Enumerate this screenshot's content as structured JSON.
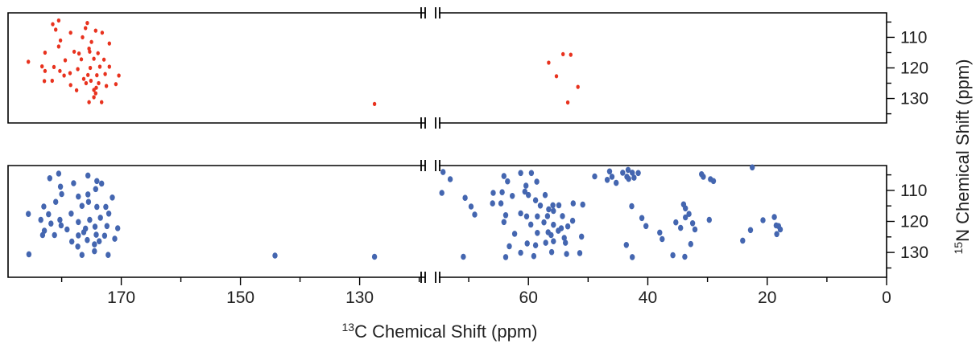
{
  "chart_data": {
    "type": "scatter",
    "xlabel": {
      "sup": "13",
      "text": "C Chemical Shift (ppm)"
    },
    "ylabel": {
      "sup": "15",
      "text": "N Chemical Shift (ppm)"
    },
    "x_axis_segments": [
      {
        "name": "carbonyl-aromatic",
        "range": [
          189,
          119
        ],
        "ticks": [
          170,
          150,
          130
        ],
        "minor_ticks": [
          180,
          160,
          140,
          120
        ]
      },
      {
        "name": "aliphatic",
        "range": [
          75,
          0
        ],
        "ticks": [
          60,
          40,
          20,
          0
        ],
        "minor_ticks": [
          70,
          50,
          30,
          10
        ]
      }
    ],
    "ylim": [
      138,
      102
    ],
    "y_ticks": [
      110,
      120,
      130
    ],
    "y_inverted": true,
    "axis_break_marker": "||",
    "series": [
      {
        "panel": "top",
        "color": "#e8321e",
        "points": [
          [
            180.5,
            104.5
          ],
          [
            175.7,
            105.3
          ],
          [
            181.5,
            105.7
          ],
          [
            181,
            107.5
          ],
          [
            176,
            107
          ],
          [
            174.3,
            107.8
          ],
          [
            178.5,
            108.5
          ],
          [
            173.2,
            108.5
          ],
          [
            176.5,
            110
          ],
          [
            180.2,
            111
          ],
          [
            175,
            111.5
          ],
          [
            172,
            112
          ],
          [
            180.5,
            113
          ],
          [
            175.4,
            113.7
          ],
          [
            177.9,
            114.7
          ],
          [
            182.8,
            115
          ],
          [
            175.3,
            114.7
          ],
          [
            173.9,
            115.2
          ],
          [
            177.1,
            115.3
          ],
          [
            174.6,
            117
          ],
          [
            179.4,
            117.5
          ],
          [
            176.7,
            117.2
          ],
          [
            172.9,
            117.3
          ],
          [
            185.6,
            118
          ],
          [
            183.3,
            119.5
          ],
          [
            181.3,
            119.7
          ],
          [
            173.6,
            119.6
          ],
          [
            172,
            119.6
          ],
          [
            175.2,
            120
          ],
          [
            177.3,
            120.4
          ],
          [
            180.3,
            121
          ],
          [
            182.8,
            121
          ],
          [
            178.6,
            121.7
          ],
          [
            174.1,
            122.4
          ],
          [
            172.7,
            122
          ],
          [
            179.6,
            122.5
          ],
          [
            175.6,
            122.3
          ],
          [
            170.4,
            122.5
          ],
          [
            176.3,
            123.6
          ],
          [
            175.1,
            124.2
          ],
          [
            181.6,
            124.2
          ],
          [
            182.9,
            124.3
          ],
          [
            175.9,
            125
          ],
          [
            173.8,
            125
          ],
          [
            172.5,
            125.9
          ],
          [
            178.5,
            125.6
          ],
          [
            170.9,
            125.3
          ],
          [
            174.2,
            126.5
          ],
          [
            174.6,
            127.2
          ],
          [
            177.5,
            127.3
          ],
          [
            174.3,
            128.3
          ],
          [
            174.6,
            129.6
          ],
          [
            175.4,
            131.2
          ],
          [
            173.3,
            131.2
          ],
          [
            127.5,
            131.8
          ],
          [
            56.6,
            118.3
          ],
          [
            54.2,
            115.5
          ],
          [
            52.9,
            115.7
          ],
          [
            55.3,
            122.7
          ],
          [
            51.7,
            126.2
          ],
          [
            53.4,
            131.3
          ]
        ]
      },
      {
        "panel": "bottom",
        "color": "#4466b0",
        "points": [
          [
            180.5,
            104.6
          ],
          [
            175.6,
            105.2
          ],
          [
            182,
            106.1
          ],
          [
            174.1,
            107
          ],
          [
            178,
            107.7
          ],
          [
            173.3,
            107.8
          ],
          [
            180.2,
            108.8
          ],
          [
            174.3,
            109.6
          ],
          [
            175.6,
            111.3
          ],
          [
            180,
            111.2
          ],
          [
            177.2,
            112
          ],
          [
            171.5,
            112.3
          ],
          [
            181,
            113.7
          ],
          [
            175.5,
            113.7
          ],
          [
            176.6,
            115
          ],
          [
            183,
            115.2
          ],
          [
            174.1,
            115.3
          ],
          [
            172.6,
            115.3
          ],
          [
            182.2,
            117.7
          ],
          [
            178.4,
            117.5
          ],
          [
            172.1,
            117.5
          ],
          [
            185.6,
            117.6
          ],
          [
            180.3,
            119.5
          ],
          [
            183.5,
            119.5
          ],
          [
            173.5,
            118.8
          ],
          [
            175.3,
            119.5
          ],
          [
            177.2,
            120.2
          ],
          [
            181.8,
            120.7
          ],
          [
            180.1,
            121.3
          ],
          [
            174.4,
            121.7
          ],
          [
            172.4,
            121.5
          ],
          [
            176,
            122.3
          ],
          [
            179.1,
            122.6
          ],
          [
            170.6,
            122.2
          ],
          [
            182.9,
            123
          ],
          [
            176.3,
            123.5
          ],
          [
            174.2,
            124.3
          ],
          [
            181.2,
            124.4
          ],
          [
            183.2,
            124.4
          ],
          [
            177.2,
            124.5
          ],
          [
            172.8,
            124.6
          ],
          [
            171.1,
            125.6
          ],
          [
            175.7,
            126
          ],
          [
            173.7,
            126.4
          ],
          [
            178.3,
            126.5
          ],
          [
            174.5,
            127.4
          ],
          [
            177.3,
            128.1
          ],
          [
            174.5,
            129.6
          ],
          [
            176.6,
            130.8
          ],
          [
            172.2,
            130.8
          ],
          [
            185.5,
            130.6
          ],
          [
            144.2,
            131
          ],
          [
            127.5,
            131.4
          ],
          [
            74.3,
            104.1
          ],
          [
            73.1,
            106.4
          ],
          [
            74.5,
            110.8
          ],
          [
            70.6,
            112.4
          ],
          [
            69.6,
            115.2
          ],
          [
            69,
            117.8
          ],
          [
            61.3,
            104.4
          ],
          [
            59.5,
            104.4
          ],
          [
            64.1,
            105.4
          ],
          [
            63.5,
            107.1
          ],
          [
            58.6,
            107.2
          ],
          [
            60.4,
            108.5
          ],
          [
            60.6,
            110.4
          ],
          [
            64.4,
            110.6
          ],
          [
            65.9,
            110.8
          ],
          [
            57.2,
            111.5
          ],
          [
            60,
            111.5
          ],
          [
            62.7,
            111.8
          ],
          [
            58.8,
            113.2
          ],
          [
            66,
            114.2
          ],
          [
            64.6,
            114.2
          ],
          [
            58,
            114.9
          ],
          [
            54.9,
            114.8
          ],
          [
            55.9,
            114.8
          ],
          [
            52.5,
            114.2
          ],
          [
            50.9,
            114.6
          ],
          [
            56.6,
            116.1
          ],
          [
            55.8,
            116.6
          ],
          [
            61.3,
            117.4
          ],
          [
            63.8,
            118
          ],
          [
            60.3,
            118.4
          ],
          [
            58.5,
            118.4
          ],
          [
            56.8,
            118.3
          ],
          [
            54.3,
            118.3
          ],
          [
            52.6,
            119.8
          ],
          [
            64.1,
            120.2
          ],
          [
            57.4,
            120.3
          ],
          [
            59.6,
            121
          ],
          [
            55.8,
            121.1
          ],
          [
            53.4,
            121.6
          ],
          [
            54.5,
            122.2
          ],
          [
            55,
            123
          ],
          [
            56.7,
            123.5
          ],
          [
            58.5,
            123.7
          ],
          [
            62.3,
            124
          ],
          [
            56.2,
            124.4
          ],
          [
            51.1,
            124.9
          ],
          [
            54,
            125.3
          ],
          [
            55.8,
            126.4
          ],
          [
            53.8,
            126.9
          ],
          [
            57.1,
            126.9
          ],
          [
            60.2,
            127.1
          ],
          [
            58.8,
            127.7
          ],
          [
            63.2,
            128
          ],
          [
            56.1,
            129.9
          ],
          [
            53.6,
            130.5
          ],
          [
            51.4,
            130.2
          ],
          [
            61.3,
            130.1
          ],
          [
            59.1,
            131.2
          ],
          [
            63.8,
            131.5
          ],
          [
            70.9,
            131.4
          ],
          [
            46.4,
            103.9
          ],
          [
            46,
            105.6
          ],
          [
            44.2,
            104.3
          ],
          [
            43.3,
            103.4
          ],
          [
            42.6,
            104.3
          ],
          [
            41.6,
            104.4
          ],
          [
            43.5,
            105.6
          ],
          [
            46.8,
            106.6
          ],
          [
            48.9,
            105.5
          ],
          [
            45.3,
            107.6
          ],
          [
            43.2,
            106.3
          ],
          [
            42.3,
            105.9
          ],
          [
            31,
            104.8
          ],
          [
            30.7,
            105.6
          ],
          [
            29.5,
            106.4
          ],
          [
            29,
            107
          ],
          [
            22.5,
            102.6
          ],
          [
            42.7,
            115.1
          ],
          [
            41,
            118.9
          ],
          [
            40.3,
            121.5
          ],
          [
            38,
            123.6
          ],
          [
            37.6,
            125.7
          ],
          [
            35.3,
            120.3
          ],
          [
            34,
            114.5
          ],
          [
            33.7,
            115.8
          ],
          [
            33.1,
            117.6
          ],
          [
            33.7,
            118.7
          ],
          [
            32.5,
            120.6
          ],
          [
            32.1,
            122.6
          ],
          [
            34.5,
            122.1
          ],
          [
            29.7,
            119.5
          ],
          [
            32.8,
            127.3
          ],
          [
            43.6,
            127.6
          ],
          [
            42.6,
            131.5
          ],
          [
            35.8,
            130.9
          ],
          [
            33.8,
            131.4
          ],
          [
            24.1,
            126.2
          ],
          [
            20.7,
            119.6
          ],
          [
            18.8,
            118.6
          ],
          [
            18.5,
            121.3
          ],
          [
            18.1,
            121.5
          ],
          [
            17.8,
            122.6
          ],
          [
            18.4,
            124.1
          ],
          [
            22.8,
            122.8
          ]
        ]
      }
    ]
  }
}
